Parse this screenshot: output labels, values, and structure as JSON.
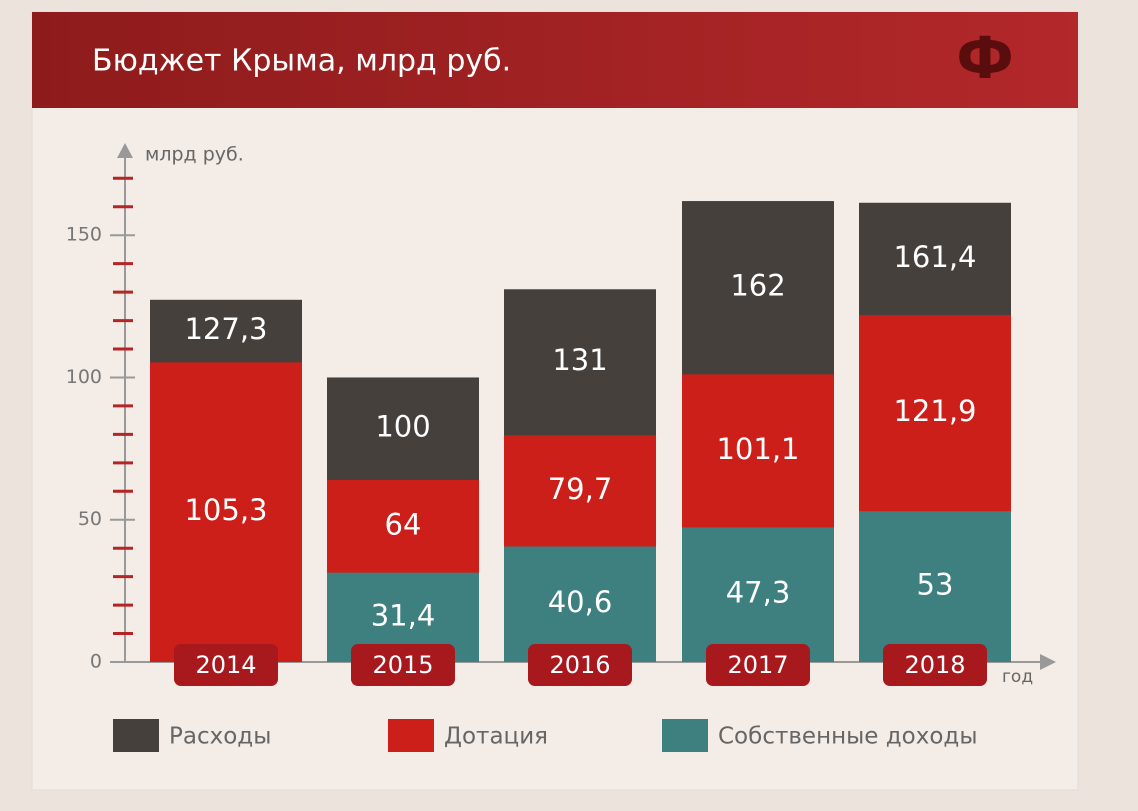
{
  "chart_data": {
    "type": "overlapping_bar",
    "title": "Бюджет Крыма, млрд руб.",
    "logo": "Ф",
    "y_label": "млрд руб.",
    "x_label": "год",
    "categories": [
      "2014",
      "2015",
      "2016",
      "2017",
      "2018"
    ],
    "series": [
      {
        "name": "Расходы",
        "color": "#45403c",
        "values": [
          127.3,
          100,
          131,
          162,
          161.4
        ],
        "value_labels": [
          "127,3",
          "100",
          "131",
          "162",
          "161,4"
        ]
      },
      {
        "name": "Дотация",
        "color": "#cc1f1a",
        "values": [
          105.3,
          64,
          79.7,
          101.1,
          121.9
        ],
        "value_labels": [
          "105,3",
          "64",
          "79,7",
          "101,1",
          "121,9"
        ]
      },
      {
        "name": "Собственные доходы",
        "color": "#3e8080",
        "values": [
          null,
          31.4,
          40.6,
          47.3,
          53
        ],
        "value_labels": [
          null,
          "31,4",
          "40,6",
          "47,3",
          "53"
        ]
      }
    ],
    "ylim": [
      0,
      181
    ],
    "yticks": [
      0,
      50,
      100,
      150
    ],
    "minor_yticks": [
      10,
      20,
      30,
      40,
      60,
      70,
      80,
      90,
      110,
      120,
      130,
      140,
      160,
      170
    ],
    "grid": false
  }
}
